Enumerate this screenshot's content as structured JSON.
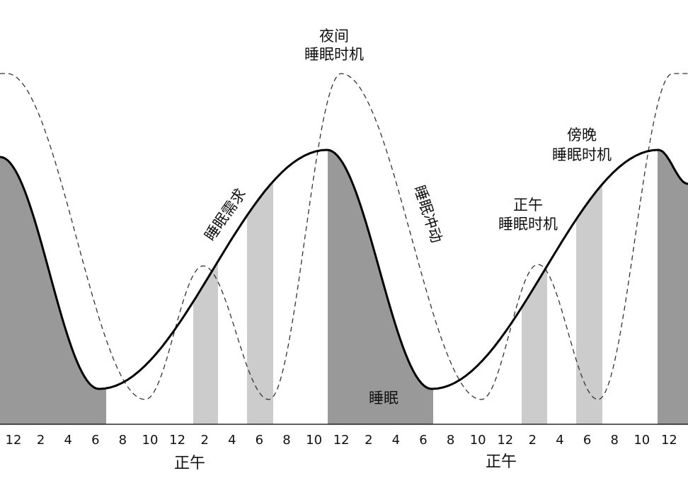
{
  "colors": {
    "sleep_shade": "#999999",
    "nap_shade": "#cccccc",
    "curve": "#000000",
    "dashed": "#333333",
    "text": "#111111"
  },
  "labels": {
    "night_window": [
      "夜间",
      "睡眠时机"
    ],
    "evening_window": [
      "傍晚",
      "睡眠时机"
    ],
    "noon_window": [
      "正午",
      "睡眠时机"
    ],
    "sleep_need": "睡眠需求",
    "sleep_drive": "睡眠冲动",
    "sleep": "睡眠",
    "noon_1": "正午",
    "noon_2": "正午"
  },
  "hour_ticks": [
    "12",
    "2",
    "4",
    "6",
    "8",
    "10",
    "12",
    "2",
    "4",
    "6",
    "8",
    "10",
    "12",
    "2",
    "4",
    "6",
    "8",
    "10",
    "12",
    "2",
    "4",
    "6",
    "8",
    "10",
    "12"
  ]
}
